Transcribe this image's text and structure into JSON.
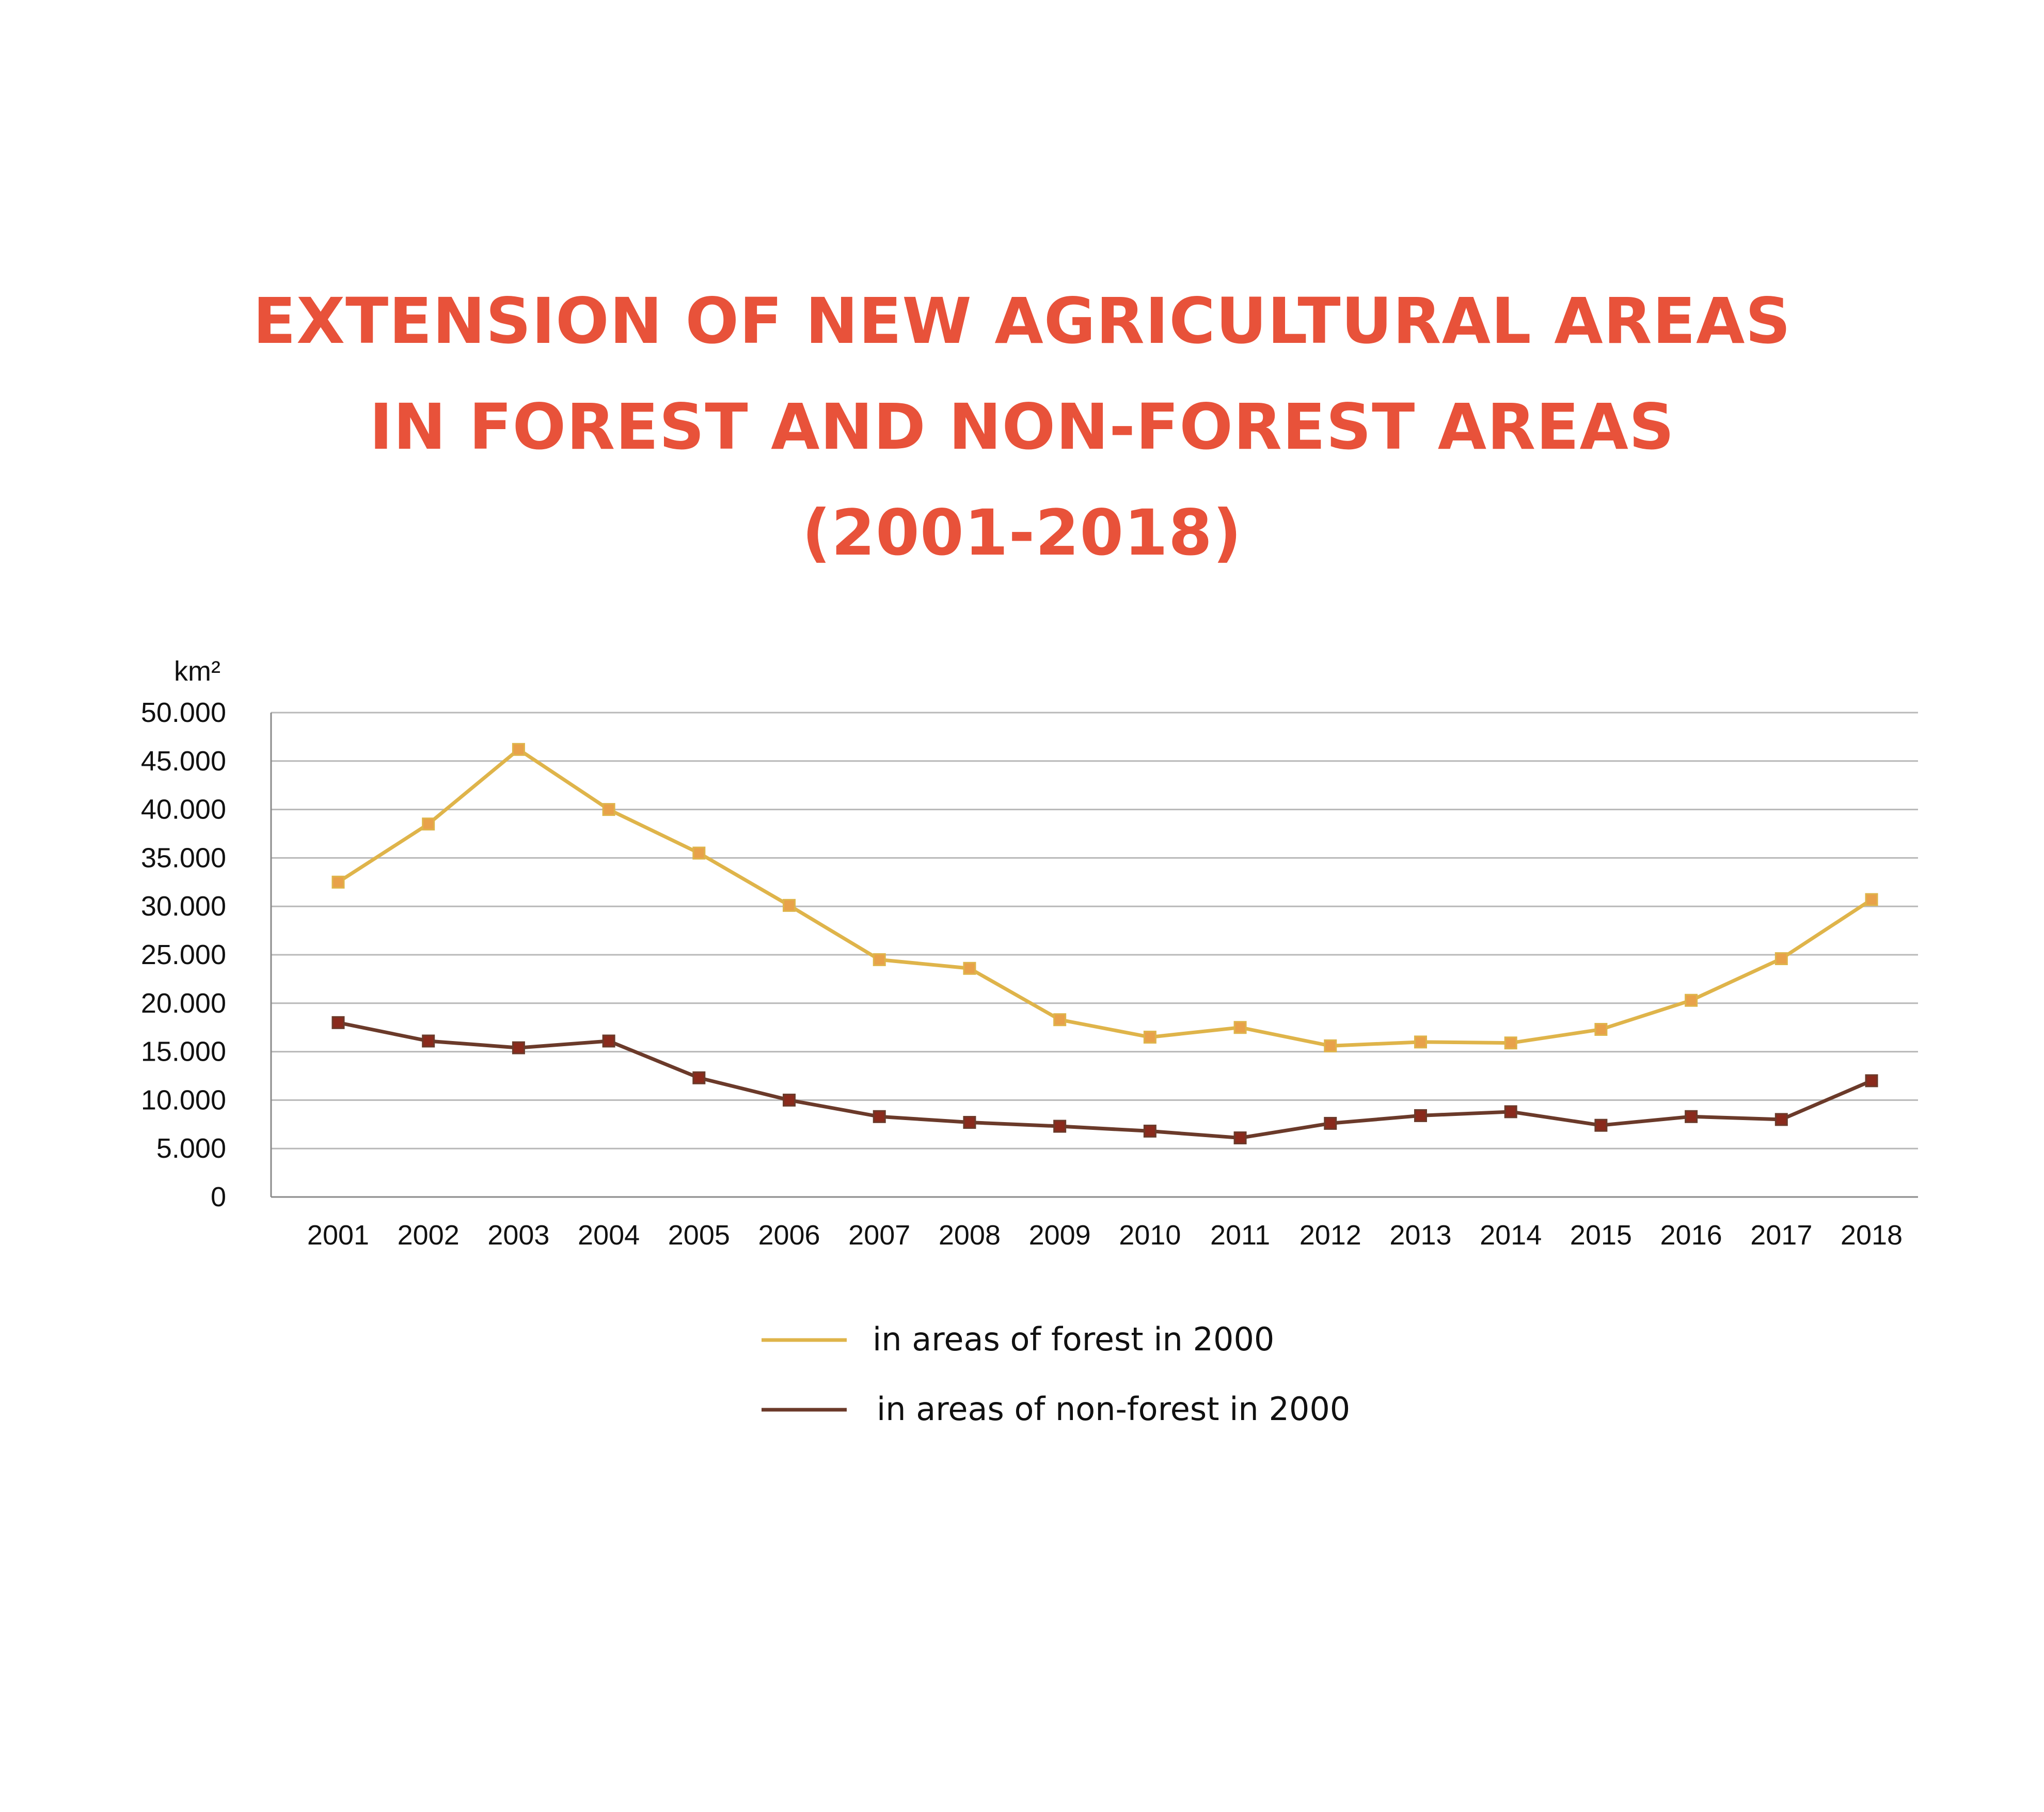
{
  "title": {
    "line1": "EXTENSION OF NEW AGRICULTURAL AREAS",
    "line2": "IN FOREST AND NON-FOREST AREAS",
    "line3": "(2001-2018)"
  },
  "colors": {
    "title": "#e8523a",
    "forest_line": "#dfb44a",
    "forest_marker": "#e8a14a",
    "nonforest_line": "#6b3a2a",
    "nonforest_marker": "#8a2a1c",
    "grid": "#b8b8b8",
    "axis": "#8a8a8a"
  },
  "chart_data": {
    "type": "line",
    "title": "EXTENSION OF NEW AGRICULTURAL AREAS IN FOREST AND NON-FOREST AREAS (2001-2018)",
    "ylabel": "km²",
    "xlabel": "",
    "ylim": [
      0,
      50000
    ],
    "grid": true,
    "y_ticks": [
      {
        "value": 0,
        "label": "0"
      },
      {
        "value": 5000,
        "label": "5.000"
      },
      {
        "value": 10000,
        "label": "10.000"
      },
      {
        "value": 15000,
        "label": "15.000"
      },
      {
        "value": 20000,
        "label": "20.000"
      },
      {
        "value": 25000,
        "label": "25.000"
      },
      {
        "value": 30000,
        "label": "30.000"
      },
      {
        "value": 35000,
        "label": "35.000"
      },
      {
        "value": 40000,
        "label": "40.000"
      },
      {
        "value": 45000,
        "label": "45.000"
      },
      {
        "value": 50000,
        "label": "50.000"
      }
    ],
    "categories": [
      "2001",
      "2002",
      "2003",
      "2004",
      "2005",
      "2006",
      "2007",
      "2008",
      "2009",
      "2010",
      "2011",
      "2012",
      "2013",
      "2014",
      "2015",
      "2016",
      "2017",
      "2018"
    ],
    "legend_position": "bottom",
    "series": [
      {
        "name": "in areas of forest in 2000",
        "key": "forest",
        "values": [
          32500,
          38500,
          46200,
          40000,
          35500,
          30100,
          24500,
          23600,
          18300,
          16500,
          17500,
          15600,
          16000,
          15900,
          17300,
          20300,
          24600,
          30700
        ]
      },
      {
        "name": "in areas of non-forest in 2000",
        "key": "nonforest",
        "values": [
          18000,
          16100,
          15400,
          16100,
          12300,
          10000,
          8300,
          7700,
          7300,
          6800,
          6100,
          7600,
          8400,
          8800,
          7400,
          8300,
          8000,
          12000
        ]
      }
    ]
  }
}
